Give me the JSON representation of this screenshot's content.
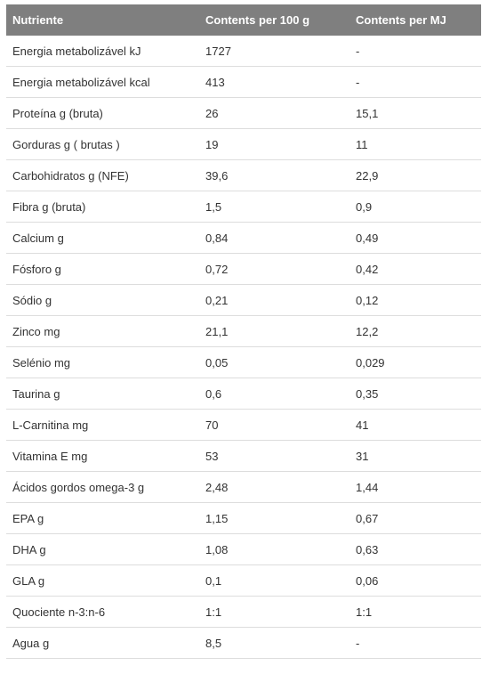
{
  "table": {
    "headers": [
      "Nutriente",
      "Contents per 100 g",
      "Contents per MJ"
    ],
    "rows": [
      [
        "Energia metabolizável kJ",
        "1727",
        "-"
      ],
      [
        "Energia metabolizável kcal",
        "413",
        "-"
      ],
      [
        "Proteína g (bruta)",
        "26",
        "15,1"
      ],
      [
        "Gorduras g ( brutas )",
        "19",
        "11"
      ],
      [
        "Carbohidratos g (NFE)",
        "39,6",
        "22,9"
      ],
      [
        "Fibra g (bruta)",
        "1,5",
        "0,9"
      ],
      [
        "Calcium g",
        "0,84",
        "0,49"
      ],
      [
        "Fósforo g",
        "0,72",
        "0,42"
      ],
      [
        "Sódio g",
        "0,21",
        "0,12"
      ],
      [
        "Zinco mg",
        "21,1",
        "12,2"
      ],
      [
        "Selénio mg",
        "0,05",
        "0,029"
      ],
      [
        "Taurina g",
        "0,6",
        "0,35"
      ],
      [
        "L-Carnitina mg",
        "70",
        "41"
      ],
      [
        "Vitamina E mg",
        "53",
        "31"
      ],
      [
        "Ácidos gordos omega-3 g",
        "2,48",
        "1,44"
      ],
      [
        "EPA g",
        "1,15",
        "0,67"
      ],
      [
        "DHA g",
        "1,08",
        "0,63"
      ],
      [
        "GLA g",
        "0,1",
        "0,06"
      ],
      [
        "Quociente n-3:n-6",
        "1:1",
        "1:1"
      ],
      [
        "Agua g",
        "8,5",
        "-"
      ]
    ]
  }
}
